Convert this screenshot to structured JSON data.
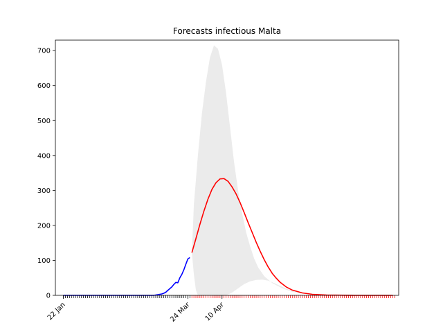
{
  "chart_data": {
    "type": "line",
    "title": "Forecasts infectious Malta",
    "xlabel": "",
    "ylabel": "",
    "ylim": [
      0,
      730
    ],
    "yticks": [
      0,
      100,
      200,
      300,
      400,
      500,
      600,
      700
    ],
    "xlim": [
      "2020-01-18",
      "2020-07-07"
    ],
    "xtick_labels": [
      {
        "date": "2020-01-22",
        "label": "22 Jan"
      },
      {
        "date": "2020-03-24",
        "label": "24 Mar"
      },
      {
        "date": "2020-04-10",
        "label": "10 Apr"
      }
    ],
    "minor_tick_range": [
      "2020-01-22",
      "2020-07-05"
    ],
    "grid": false,
    "series": [
      {
        "color": "#0000ff",
        "points": [
          [
            "2020-01-22",
            0
          ],
          [
            "2020-02-15",
            0
          ],
          [
            "2020-03-07",
            0
          ],
          [
            "2020-03-08",
            1
          ],
          [
            "2020-03-09",
            2
          ],
          [
            "2020-03-10",
            3
          ],
          [
            "2020-03-11",
            4
          ],
          [
            "2020-03-12",
            6
          ],
          [
            "2020-03-13",
            9
          ],
          [
            "2020-03-14",
            14
          ],
          [
            "2020-03-15",
            19
          ],
          [
            "2020-03-16",
            24
          ],
          [
            "2020-03-17",
            31
          ],
          [
            "2020-03-18",
            37
          ],
          [
            "2020-03-19",
            36
          ],
          [
            "2020-03-20",
            50
          ],
          [
            "2020-03-21",
            60
          ],
          [
            "2020-03-22",
            73
          ],
          [
            "2020-03-23",
            89
          ],
          [
            "2020-03-24",
            104
          ],
          [
            "2020-03-25",
            108
          ]
        ]
      },
      {
        "color": "#ff0000",
        "points": [
          [
            "2020-03-26",
            122
          ],
          [
            "2020-03-28",
            162
          ],
          [
            "2020-03-30",
            203
          ],
          [
            "2020-04-01",
            241
          ],
          [
            "2020-04-03",
            275
          ],
          [
            "2020-04-05",
            303
          ],
          [
            "2020-04-07",
            322
          ],
          [
            "2020-04-09",
            333
          ],
          [
            "2020-04-11",
            334
          ],
          [
            "2020-04-13",
            326
          ],
          [
            "2020-04-15",
            310
          ],
          [
            "2020-04-17",
            290
          ],
          [
            "2020-04-19",
            265
          ],
          [
            "2020-04-21",
            237
          ],
          [
            "2020-04-23",
            208
          ],
          [
            "2020-04-25",
            180
          ],
          [
            "2020-04-27",
            152
          ],
          [
            "2020-04-29",
            126
          ],
          [
            "2020-05-01",
            102
          ],
          [
            "2020-05-03",
            81
          ],
          [
            "2020-05-05",
            63
          ],
          [
            "2020-05-07",
            49
          ],
          [
            "2020-05-09",
            37
          ],
          [
            "2020-05-12",
            24
          ],
          [
            "2020-05-15",
            15
          ],
          [
            "2020-05-20",
            7
          ],
          [
            "2020-05-25",
            3
          ],
          [
            "2020-06-01",
            1
          ],
          [
            "2020-06-15",
            0
          ],
          [
            "2020-07-04",
            0
          ]
        ]
      }
    ],
    "band": {
      "color": "#ebebeb",
      "upper": [
        [
          "2020-03-26",
          122
        ],
        [
          "2020-03-27",
          260
        ],
        [
          "2020-03-29",
          400
        ],
        [
          "2020-03-31",
          520
        ],
        [
          "2020-04-02",
          610
        ],
        [
          "2020-04-04",
          680
        ],
        [
          "2020-04-06",
          715
        ],
        [
          "2020-04-08",
          705
        ],
        [
          "2020-04-10",
          660
        ],
        [
          "2020-04-12",
          580
        ],
        [
          "2020-04-14",
          480
        ],
        [
          "2020-04-16",
          380
        ],
        [
          "2020-04-18",
          300
        ],
        [
          "2020-04-20",
          235
        ],
        [
          "2020-04-22",
          180
        ],
        [
          "2020-04-24",
          140
        ],
        [
          "2020-04-26",
          105
        ],
        [
          "2020-04-28",
          80
        ],
        [
          "2020-05-01",
          55
        ],
        [
          "2020-05-05",
          35
        ],
        [
          "2020-05-10",
          20
        ],
        [
          "2020-05-15",
          10
        ],
        [
          "2020-05-20",
          5
        ],
        [
          "2020-06-01",
          2
        ],
        [
          "2020-06-15",
          0
        ],
        [
          "2020-07-04",
          0
        ]
      ],
      "lower": [
        [
          "2020-03-26",
          122
        ],
        [
          "2020-03-27",
          60
        ],
        [
          "2020-03-28",
          15
        ],
        [
          "2020-03-29",
          0
        ],
        [
          "2020-04-12",
          0
        ],
        [
          "2020-04-15",
          8
        ],
        [
          "2020-04-18",
          20
        ],
        [
          "2020-04-21",
          32
        ],
        [
          "2020-04-24",
          40
        ],
        [
          "2020-04-27",
          44
        ],
        [
          "2020-04-30",
          45
        ],
        [
          "2020-05-03",
          42
        ],
        [
          "2020-05-06",
          35
        ],
        [
          "2020-05-09",
          27
        ],
        [
          "2020-05-12",
          19
        ],
        [
          "2020-05-15",
          13
        ],
        [
          "2020-05-20",
          7
        ],
        [
          "2020-05-25",
          3
        ],
        [
          "2020-06-01",
          1
        ],
        [
          "2020-06-15",
          0
        ],
        [
          "2020-07-04",
          0
        ]
      ]
    }
  }
}
